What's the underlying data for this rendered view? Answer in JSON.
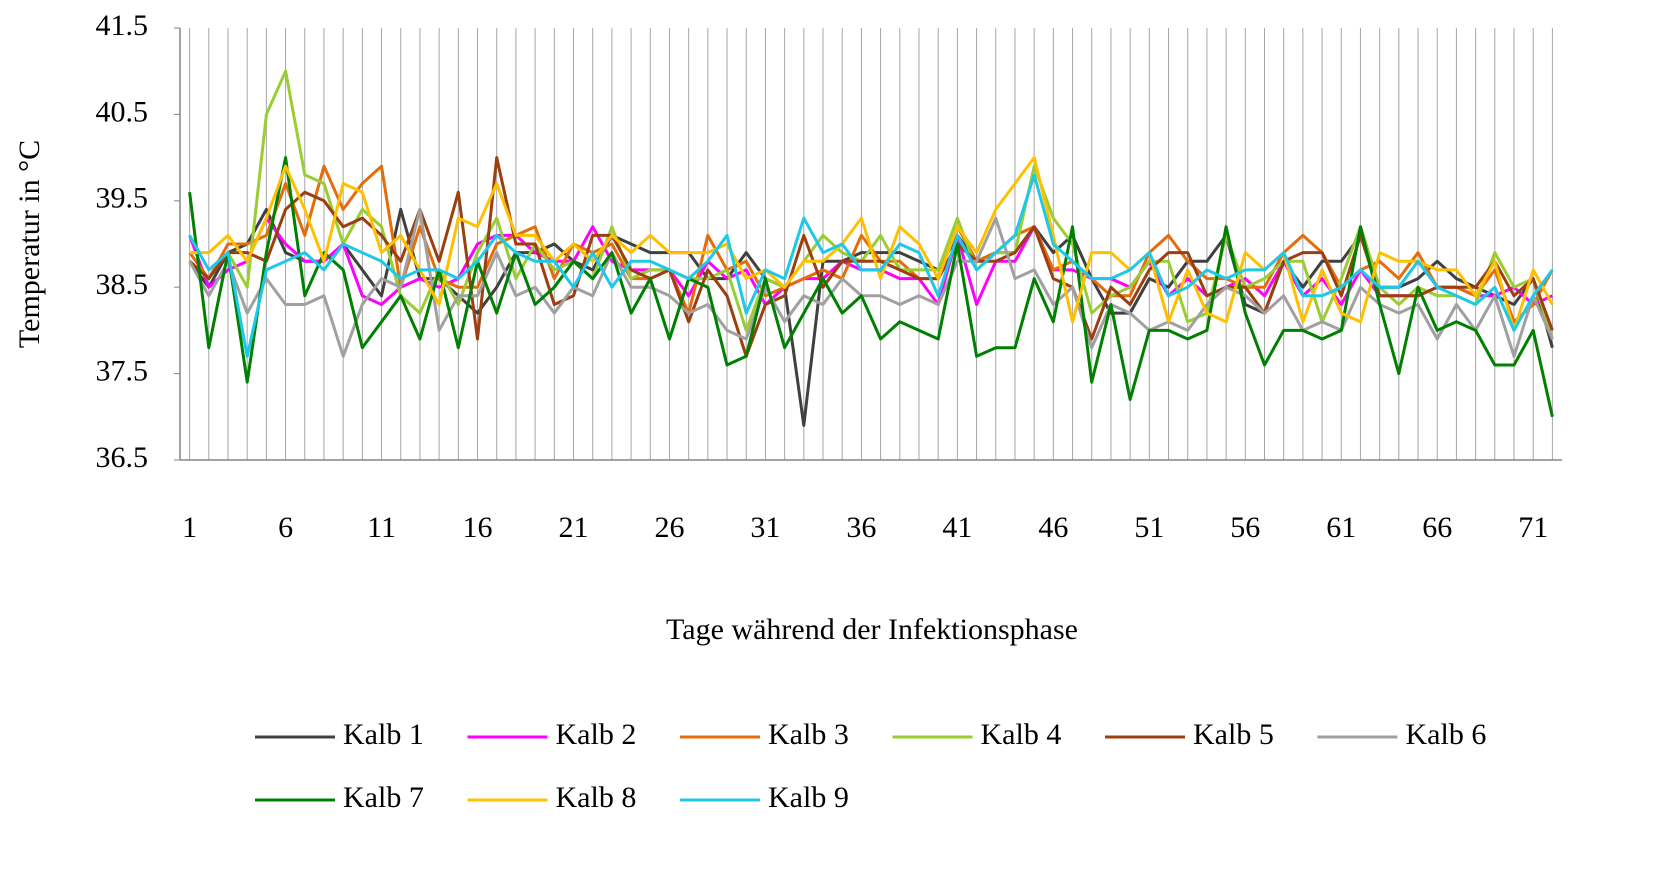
{
  "chart_data": {
    "type": "line",
    "x_label": "Tage während der Infektionsphase",
    "y_label": "Temperatur in °C",
    "x": [
      1,
      2,
      3,
      4,
      5,
      6,
      7,
      8,
      9,
      10,
      11,
      12,
      13,
      14,
      15,
      16,
      17,
      18,
      19,
      20,
      21,
      22,
      23,
      24,
      25,
      26,
      27,
      28,
      29,
      30,
      31,
      32,
      33,
      34,
      35,
      36,
      37,
      38,
      39,
      40,
      41,
      42,
      43,
      44,
      45,
      46,
      47,
      48,
      49,
      50,
      51,
      52,
      53,
      54,
      55,
      56,
      57,
      58,
      59,
      60,
      61,
      62,
      63,
      64,
      65,
      66,
      67,
      68,
      69,
      70,
      71,
      72
    ],
    "xlim": [
      0.5,
      72.5
    ],
    "xticks": [
      1,
      6,
      11,
      16,
      21,
      26,
      31,
      36,
      41,
      46,
      51,
      56,
      61,
      66,
      71
    ],
    "ylim": [
      36.5,
      41.5
    ],
    "yticks": [
      36.5,
      37.5,
      38.5,
      39.5,
      40.5,
      41.5
    ],
    "grid": "x",
    "legend": "bottom",
    "series": [
      {
        "name": "Kalb 1",
        "color": "#404040",
        "values": [
          38.8,
          38.5,
          38.9,
          39.0,
          39.4,
          38.9,
          38.8,
          38.8,
          39.0,
          38.7,
          38.4,
          39.4,
          38.6,
          38.6,
          38.4,
          38.2,
          38.5,
          38.9,
          38.9,
          39.0,
          38.8,
          38.7,
          39.1,
          39.0,
          38.9,
          38.9,
          38.9,
          38.6,
          38.6,
          38.9,
          38.6,
          38.5,
          36.9,
          38.8,
          38.8,
          38.9,
          38.9,
          38.9,
          38.8,
          38.7,
          39.1,
          38.8,
          38.9,
          38.9,
          39.2,
          38.9,
          39.1,
          38.6,
          38.2,
          38.2,
          38.6,
          38.5,
          38.8,
          38.8,
          39.1,
          38.3,
          38.2,
          38.8,
          38.5,
          38.8,
          38.8,
          39.1,
          38.5,
          38.5,
          38.6,
          38.8,
          38.6,
          38.5,
          38.4,
          38.3,
          38.6,
          37.8
        ]
      },
      {
        "name": "Kalb 2",
        "color": "#ff00ff",
        "values": [
          39.1,
          38.5,
          38.7,
          38.8,
          39.3,
          39.0,
          38.8,
          38.8,
          39.0,
          38.4,
          38.3,
          38.5,
          38.6,
          38.5,
          38.6,
          39.0,
          39.1,
          39.1,
          38.9,
          38.8,
          38.8,
          39.2,
          38.8,
          38.7,
          38.7,
          38.7,
          38.4,
          38.8,
          38.6,
          38.7,
          38.3,
          38.5,
          38.6,
          38.6,
          38.8,
          38.7,
          38.7,
          38.6,
          38.6,
          38.3,
          39.1,
          38.3,
          38.8,
          38.8,
          39.2,
          38.7,
          38.7,
          38.6,
          38.6,
          38.5,
          38.8,
          38.4,
          38.6,
          38.4,
          38.5,
          38.6,
          38.4,
          38.8,
          38.4,
          38.6,
          38.3,
          38.7,
          38.4,
          38.4,
          38.4,
          38.5,
          38.5,
          38.4,
          38.4,
          38.5,
          38.3,
          38.4
        ]
      },
      {
        "name": "Kalb 3",
        "color": "#e46c0a",
        "values": [
          38.9,
          38.6,
          39.0,
          39.0,
          39.1,
          39.7,
          39.1,
          39.9,
          39.4,
          39.7,
          39.9,
          38.5,
          39.2,
          38.6,
          38.5,
          38.5,
          39.0,
          39.1,
          39.2,
          38.6,
          39.0,
          38.9,
          39.0,
          38.6,
          38.6,
          38.7,
          38.2,
          39.1,
          38.7,
          38.8,
          38.4,
          38.5,
          38.6,
          38.7,
          38.6,
          39.1,
          38.8,
          38.8,
          38.6,
          38.6,
          39.2,
          38.8,
          38.9,
          39.1,
          39.2,
          38.7,
          38.8,
          38.6,
          38.4,
          38.4,
          38.9,
          39.1,
          38.8,
          38.6,
          38.6,
          38.5,
          38.5,
          38.9,
          39.1,
          38.9,
          38.5,
          38.7,
          38.8,
          38.6,
          38.9,
          38.5,
          38.5,
          38.4,
          38.7,
          38.1,
          38.3,
          38.7
        ]
      },
      {
        "name": "Kalb 4",
        "color": "#9acd32",
        "values": [
          38.8,
          38.6,
          38.9,
          38.5,
          40.5,
          41.0,
          39.8,
          39.7,
          39.0,
          39.4,
          39.2,
          38.4,
          38.2,
          38.7,
          38.3,
          38.9,
          39.3,
          38.6,
          39.0,
          38.7,
          38.8,
          38.6,
          39.2,
          38.6,
          38.7,
          38.7,
          38.6,
          38.6,
          38.7,
          38.0,
          38.6,
          38.5,
          38.8,
          39.1,
          38.9,
          38.8,
          39.1,
          38.7,
          38.7,
          38.7,
          39.3,
          38.7,
          38.9,
          38.9,
          39.9,
          39.3,
          39.0,
          38.2,
          38.4,
          38.5,
          38.8,
          38.8,
          38.1,
          38.2,
          39.1,
          38.5,
          38.6,
          38.8,
          38.8,
          38.1,
          38.6,
          39.2,
          38.5,
          38.3,
          38.5,
          38.4,
          38.4,
          38.3,
          38.9,
          38.5,
          38.6,
          37.9
        ]
      },
      {
        "name": "Kalb 5",
        "color": "#9c3f10",
        "values": [
          38.8,
          38.6,
          38.9,
          38.9,
          38.8,
          39.4,
          39.6,
          39.5,
          39.2,
          39.3,
          39.1,
          38.8,
          39.4,
          38.8,
          39.6,
          37.9,
          40.0,
          39.0,
          39.0,
          38.3,
          38.4,
          39.1,
          39.1,
          38.7,
          38.6,
          38.7,
          38.1,
          38.7,
          38.4,
          37.7,
          38.3,
          38.4,
          39.1,
          38.5,
          38.8,
          38.8,
          38.8,
          38.7,
          38.6,
          38.6,
          39.0,
          38.8,
          38.8,
          38.9,
          39.2,
          38.6,
          38.5,
          37.9,
          38.5,
          38.3,
          38.7,
          38.9,
          38.9,
          38.4,
          38.5,
          38.5,
          38.2,
          38.8,
          38.9,
          38.9,
          38.4,
          39.1,
          38.4,
          38.4,
          38.4,
          38.5,
          38.5,
          38.5,
          38.8,
          38.4,
          38.6,
          38.0
        ]
      },
      {
        "name": "Kalb 6",
        "color": "#a0a0a0",
        "values": [
          38.8,
          38.4,
          38.8,
          38.2,
          38.6,
          38.3,
          38.3,
          38.4,
          37.7,
          38.3,
          38.6,
          38.5,
          39.4,
          38.0,
          38.4,
          38.4,
          38.9,
          38.4,
          38.5,
          38.2,
          38.5,
          38.4,
          38.9,
          38.5,
          38.5,
          38.4,
          38.2,
          38.3,
          38.0,
          37.9,
          38.5,
          38.1,
          38.4,
          38.3,
          38.6,
          38.4,
          38.4,
          38.3,
          38.4,
          38.3,
          38.8,
          38.8,
          39.3,
          38.6,
          38.7,
          38.3,
          38.5,
          37.8,
          38.3,
          38.2,
          38.0,
          38.1,
          38.0,
          38.3,
          38.5,
          38.4,
          38.2,
          38.4,
          38.0,
          38.1,
          38.0,
          38.5,
          38.3,
          38.2,
          38.3,
          37.9,
          38.3,
          38.0,
          38.4,
          37.7,
          38.4,
          37.9
        ]
      },
      {
        "name": "Kalb 7",
        "color": "#008000",
        "values": [
          39.6,
          37.8,
          38.9,
          37.4,
          38.9,
          40.0,
          38.4,
          38.9,
          38.7,
          37.8,
          38.1,
          38.4,
          37.9,
          38.7,
          37.8,
          38.8,
          38.2,
          38.9,
          38.3,
          38.5,
          38.8,
          38.6,
          38.9,
          38.2,
          38.6,
          37.9,
          38.6,
          38.5,
          37.6,
          37.7,
          38.6,
          37.8,
          38.2,
          38.6,
          38.2,
          38.4,
          37.9,
          38.1,
          38.0,
          37.9,
          39.0,
          37.7,
          37.8,
          37.8,
          38.6,
          38.1,
          39.2,
          37.4,
          38.3,
          37.2,
          38.0,
          38.0,
          37.9,
          38.0,
          39.2,
          38.2,
          37.6,
          38.0,
          38.0,
          37.9,
          38.0,
          39.2,
          38.3,
          37.5,
          38.5,
          38.0,
          38.1,
          38.0,
          37.6,
          37.6,
          38.0,
          37.0
        ]
      },
      {
        "name": "Kalb 8",
        "color": "#ffc000",
        "values": [
          38.9,
          38.9,
          39.1,
          38.8,
          39.3,
          39.9,
          39.4,
          38.8,
          39.7,
          39.6,
          38.9,
          39.1,
          38.7,
          38.3,
          39.3,
          39.2,
          39.7,
          39.1,
          39.1,
          38.8,
          39.0,
          38.8,
          39.1,
          38.9,
          39.1,
          38.9,
          38.9,
          38.9,
          39.0,
          38.6,
          38.7,
          38.5,
          38.8,
          38.8,
          39.0,
          39.3,
          38.6,
          39.2,
          39.0,
          38.6,
          39.2,
          38.9,
          39.4,
          39.7,
          40.0,
          39.1,
          38.1,
          38.9,
          38.9,
          38.7,
          38.9,
          38.1,
          38.7,
          38.2,
          38.1,
          38.9,
          38.7,
          38.9,
          38.1,
          38.7,
          38.2,
          38.1,
          38.9,
          38.8,
          38.8,
          38.7,
          38.7,
          38.4,
          38.8,
          38.0,
          38.7,
          38.3
        ]
      },
      {
        "name": "Kalb 9",
        "color": "#1ec8e8",
        "values": [
          39.1,
          38.7,
          38.9,
          37.7,
          38.7,
          38.8,
          38.9,
          38.7,
          39.0,
          38.9,
          38.8,
          38.6,
          38.7,
          38.7,
          38.6,
          38.8,
          39.1,
          38.9,
          38.8,
          38.8,
          38.5,
          38.9,
          38.5,
          38.8,
          38.8,
          38.7,
          38.6,
          38.8,
          39.1,
          38.2,
          38.7,
          38.6,
          39.3,
          38.9,
          39.0,
          38.7,
          38.7,
          39.0,
          38.9,
          38.4,
          39.1,
          38.7,
          38.9,
          39.1,
          39.8,
          39.0,
          38.8,
          38.6,
          38.6,
          38.7,
          38.9,
          38.4,
          38.5,
          38.7,
          38.6,
          38.7,
          38.7,
          38.9,
          38.4,
          38.4,
          38.5,
          38.7,
          38.5,
          38.5,
          38.8,
          38.5,
          38.4,
          38.3,
          38.5,
          38.0,
          38.4,
          38.7
        ]
      }
    ]
  }
}
